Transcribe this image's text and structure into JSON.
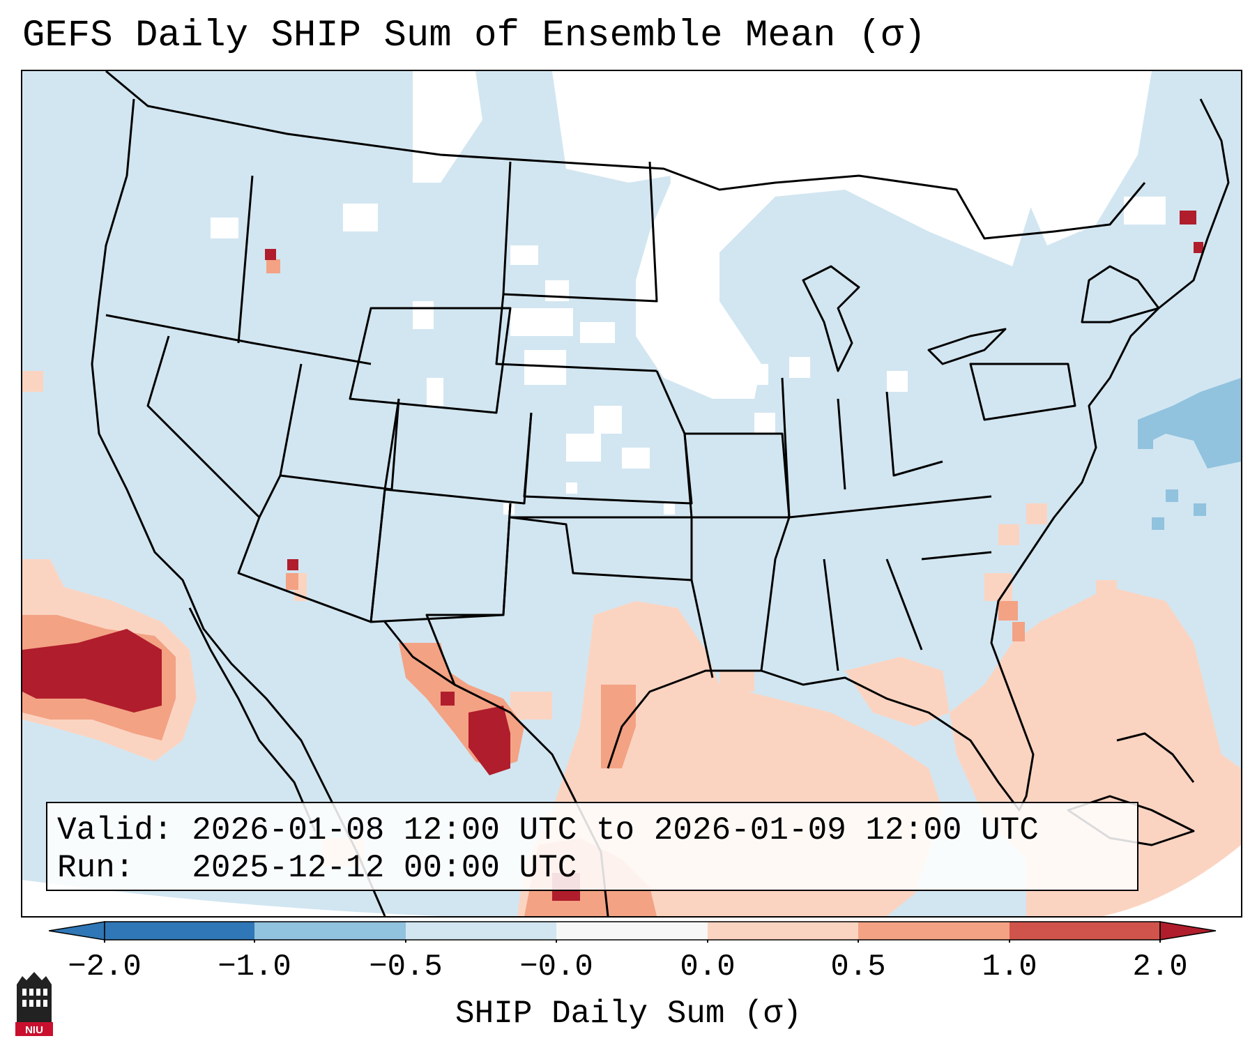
{
  "title": "GEFS Daily SHIP Sum of Ensemble Mean (σ)",
  "info": {
    "valid_label": "Valid:",
    "valid_value": "2026-01-08 12:00 UTC to 2026-01-09 12:00 UTC",
    "run_label": "Run:",
    "run_value": "2025-12-12 00:00 UTC"
  },
  "colorbar": {
    "label": "SHIP Daily Sum (σ)",
    "ticks": [
      "−2.0",
      "−1.0",
      "−0.5",
      "−0.0",
      "0.0",
      "0.5",
      "1.0",
      "2.0"
    ],
    "colors": [
      "#2f77b6",
      "#91c2de",
      "#d2e6f1",
      "#f7f7f7",
      "#fbd4c1",
      "#f3a284",
      "#d0544b",
      "#b01d2c"
    ]
  },
  "logo": {
    "text": "NIU"
  },
  "map": {
    "projection": "Lambert conformal, CONUS",
    "background_color": "#d2e6f1",
    "outside_domain_color": "#ffffff"
  }
}
